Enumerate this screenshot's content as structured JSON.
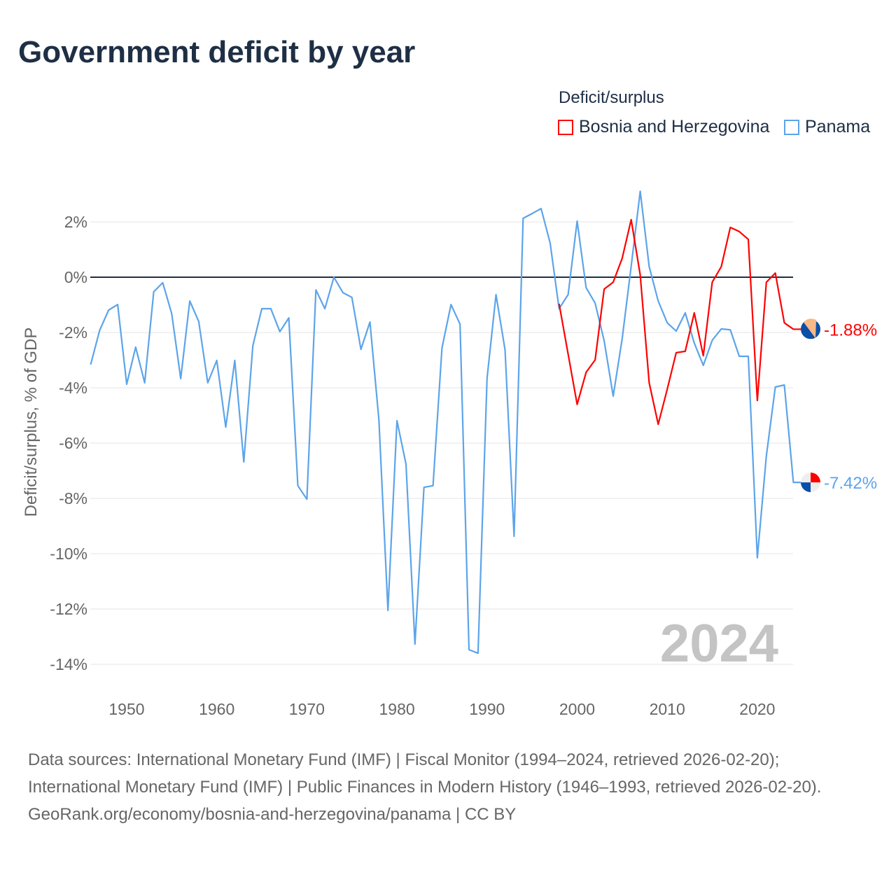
{
  "title": "Government deficit by year",
  "legend_title": "Deficit/surplus",
  "footer": {
    "sources": "Data sources: International Monetary Fund (IMF) | Fiscal Monitor (1994–2024, retrieved 2026-02-20); International Monetary Fund (IMF) | Public Finances in Modern History (1946–1993, retrieved 2026-02-20).",
    "link": "GeoRank.org/economy/bosnia-and-herzegovina/panama | CC BY"
  },
  "chart_data": {
    "type": "line",
    "title": "Government deficit by year",
    "ylabel": "Deficit/surplus, % of GDP",
    "xlabel": "",
    "xlim": [
      1946,
      2024
    ],
    "ylim": [
      -14,
      3.2
    ],
    "yticks": [
      2,
      0,
      -2,
      -4,
      -6,
      -8,
      -10,
      -12,
      -14
    ],
    "ytick_labels": [
      "2%",
      "0%",
      "-2%",
      "-4%",
      "-6%",
      "-8%",
      "-10%",
      "-12%",
      "-14%"
    ],
    "xticks": [
      1950,
      1960,
      1970,
      1980,
      1990,
      2000,
      2010,
      2020
    ],
    "xtick_labels": [
      "1950",
      "1960",
      "1970",
      "1980",
      "1990",
      "2000",
      "2010",
      "2020"
    ],
    "watermark": "2024",
    "grid": true,
    "legend_position": "top-right",
    "series": [
      {
        "name": "Bosnia and Herzegovina",
        "color": "#ff0000",
        "start_year": 1998,
        "end_label": "-1.88%",
        "values": [
          -0.96,
          -2.78,
          -4.6,
          -3.44,
          -2.99,
          -0.43,
          -0.18,
          0.68,
          2.08,
          0.08,
          -3.82,
          -5.32,
          -4.05,
          -2.73,
          -2.68,
          -1.29,
          -2.84,
          -0.18,
          0.38,
          1.8,
          1.65,
          1.37,
          -4.46,
          -0.18,
          0.15,
          -1.65,
          -1.88
        ]
      },
      {
        "name": "Panama",
        "color": "#5ca4ea",
        "start_year": 1946,
        "end_label": "-7.42%",
        "values": [
          -3.16,
          -1.92,
          -1.19,
          -0.99,
          -3.87,
          -2.53,
          -3.82,
          -0.53,
          -0.2,
          -1.32,
          -3.67,
          -0.86,
          -1.6,
          -3.82,
          -3.01,
          -5.42,
          -3.01,
          -6.68,
          -2.48,
          -1.14,
          -1.14,
          -1.97,
          -1.47,
          -7.54,
          -8.03,
          -0.46,
          -1.14,
          0,
          -0.56,
          -0.73,
          -2.61,
          -1.62,
          -5.16,
          -12.05,
          -5.19,
          -6.76,
          -13.27,
          -7.6,
          -7.54,
          -2.56,
          -0.99,
          -1.7,
          -13.47,
          -13.6,
          -3.65,
          -0.63,
          -2.63,
          -9.37,
          2.13,
          2.3,
          2.48,
          1.24,
          -1.14,
          -0.63,
          2.03,
          -0.38,
          -0.94,
          -2.3,
          -4.3,
          -2.23,
          0.4,
          3.11,
          0.38,
          -0.86,
          -1.65,
          -1.95,
          -1.29,
          -2.38,
          -3.19,
          -2.28,
          -1.87,
          -1.9,
          -2.86,
          -2.86,
          -10.15,
          -6.46,
          -3.97,
          -3.9,
          -7.42
        ]
      }
    ]
  }
}
